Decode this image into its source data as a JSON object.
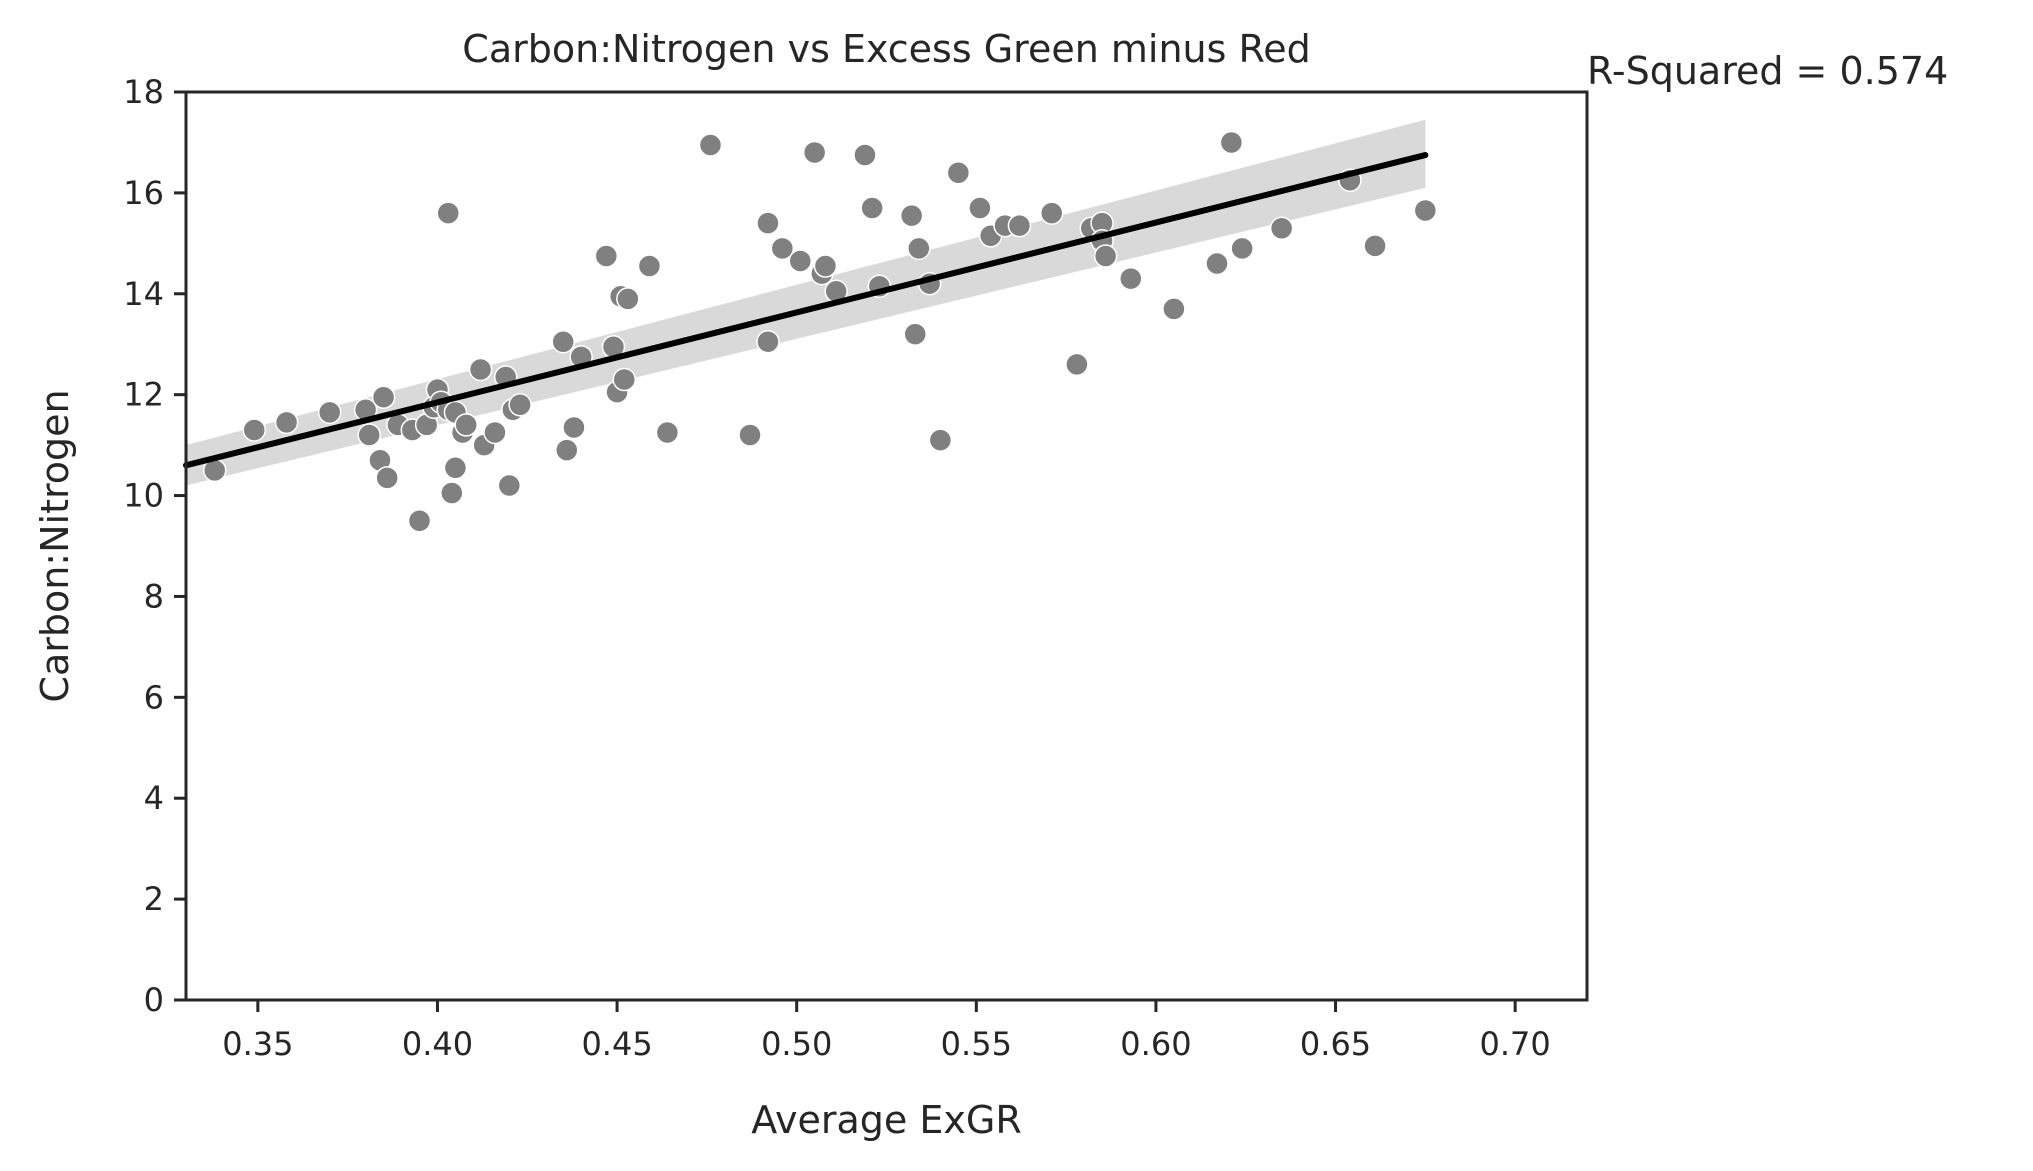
{
  "chart_data": {
    "type": "scatter",
    "title": "Carbon:Nitrogen vs Excess Green minus Red",
    "xlabel": "Average ExGR",
    "ylabel": "Carbon:Nitrogen",
    "annotation": "R-Squared = 0.574",
    "xlim": [
      0.33,
      0.72
    ],
    "ylim": [
      0,
      18
    ],
    "xticks": [
      0.35,
      0.4,
      0.45,
      0.5,
      0.55,
      0.6,
      0.65,
      0.7
    ],
    "xtick_labels": [
      "0.35",
      "0.40",
      "0.45",
      "0.50",
      "0.55",
      "0.60",
      "0.65",
      "0.70"
    ],
    "yticks": [
      0,
      2,
      4,
      6,
      8,
      10,
      12,
      14,
      16,
      18
    ],
    "ytick_labels": [
      "0",
      "2",
      "4",
      "6",
      "8",
      "10",
      "12",
      "14",
      "16",
      "18"
    ],
    "grid": false,
    "colors": {
      "points": "#808080",
      "point_edge": "#ffffff",
      "regression_line": "#000000",
      "confidence_band": "#d9d9d9",
      "axes": "#262626"
    },
    "regression": {
      "x": [
        0.33,
        0.675
      ],
      "y": [
        10.6,
        16.75
      ],
      "band_lower": [
        10.2,
        16.1
      ],
      "band_upper": [
        11.0,
        17.45
      ]
    },
    "points": {
      "x": [
        0.338,
        0.349,
        0.358,
        0.37,
        0.38,
        0.381,
        0.384,
        0.385,
        0.386,
        0.389,
        0.393,
        0.395,
        0.397,
        0.399,
        0.4,
        0.401,
        0.403,
        0.403,
        0.404,
        0.405,
        0.405,
        0.407,
        0.408,
        0.412,
        0.413,
        0.416,
        0.419,
        0.42,
        0.421,
        0.423,
        0.435,
        0.436,
        0.438,
        0.44,
        0.447,
        0.449,
        0.45,
        0.451,
        0.452,
        0.453,
        0.459,
        0.464,
        0.476,
        0.487,
        0.492,
        0.492,
        0.496,
        0.501,
        0.505,
        0.507,
        0.508,
        0.511,
        0.519,
        0.521,
        0.523,
        0.532,
        0.533,
        0.534,
        0.537,
        0.54,
        0.545,
        0.551,
        0.554,
        0.558,
        0.562,
        0.571,
        0.578,
        0.582,
        0.585,
        0.585,
        0.586,
        0.593,
        0.605,
        0.617,
        0.621,
        0.624,
        0.635,
        0.654,
        0.661,
        0.675
      ],
      "y": [
        10.5,
        11.3,
        11.45,
        11.65,
        11.7,
        11.2,
        10.7,
        11.95,
        10.35,
        11.4,
        11.3,
        9.5,
        11.4,
        11.75,
        12.1,
        11.85,
        11.7,
        15.6,
        10.05,
        11.65,
        10.55,
        11.25,
        11.4,
        12.5,
        11.0,
        11.25,
        12.35,
        10.2,
        11.7,
        11.8,
        13.05,
        10.9,
        11.35,
        12.75,
        14.75,
        12.95,
        12.05,
        13.95,
        12.3,
        13.9,
        14.55,
        11.25,
        16.95,
        11.2,
        13.05,
        15.4,
        14.9,
        14.65,
        16.8,
        14.4,
        14.55,
        14.05,
        16.75,
        15.7,
        14.15,
        15.55,
        13.2,
        14.9,
        14.2,
        11.1,
        16.4,
        15.7,
        15.15,
        15.35,
        15.35,
        15.6,
        12.6,
        15.3,
        15.4,
        15.05,
        14.75,
        14.3,
        13.7,
        14.6,
        17.0,
        14.9,
        15.3,
        16.25,
        14.95,
        15.65
      ]
    }
  }
}
